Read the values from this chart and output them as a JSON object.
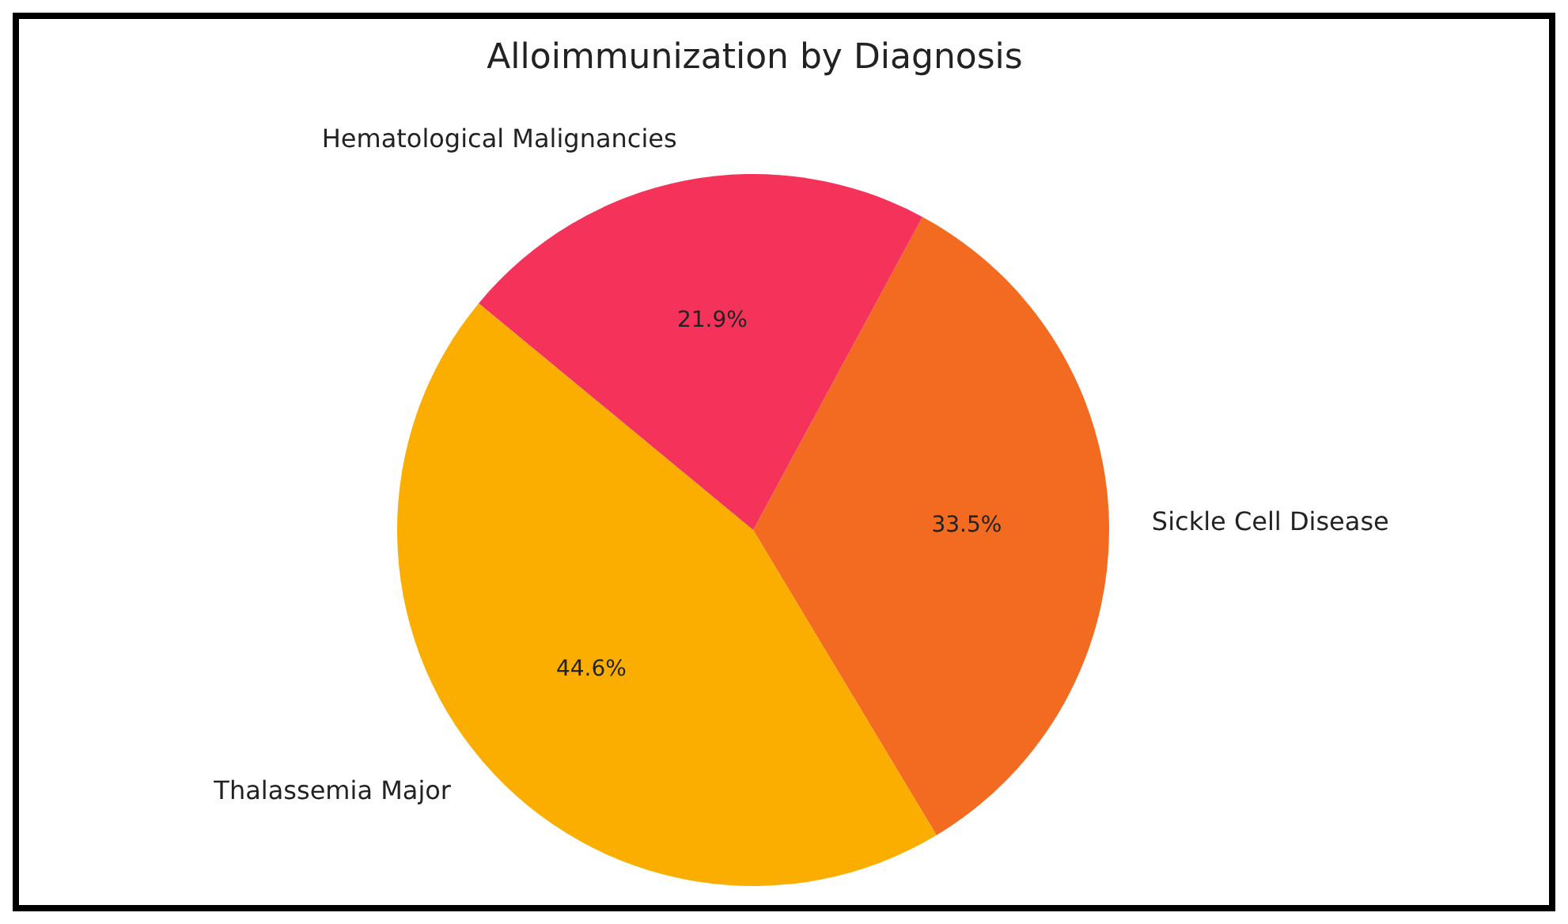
{
  "chart_data": {
    "type": "pie",
    "title": "Alloimmunization by Diagnosis",
    "categories": [
      "Sickle Cell Disease",
      "Hematological Malignancies",
      "Thalassemia Major"
    ],
    "values": [
      33.5,
      21.9,
      44.6
    ],
    "value_labels": [
      "33.5%",
      "21.9%",
      "44.6%"
    ],
    "colors": [
      "#f26b21",
      "#f5325a",
      "#fcae00"
    ]
  }
}
